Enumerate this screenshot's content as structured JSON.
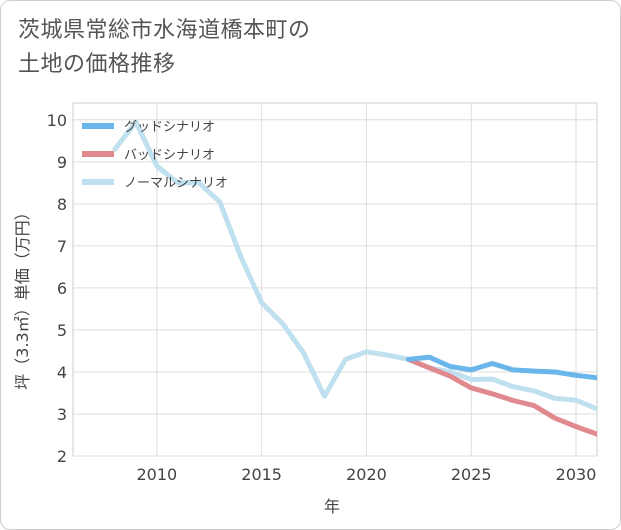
{
  "title_lines": [
    "茨城県常総市水海道橋本町の",
    "土地の価格推移"
  ],
  "chart_data": {
    "type": "line",
    "xlabel": "年",
    "ylabel": "坪（3.3㎡）単価（万円）",
    "xlim": [
      2006,
      2031
    ],
    "ylim": [
      2,
      10.4
    ],
    "xticks": [
      2010,
      2015,
      2020,
      2025,
      2030
    ],
    "yticks": [
      2,
      3,
      4,
      5,
      6,
      7,
      8,
      9,
      10
    ],
    "legend_position": "top-left",
    "grid": true,
    "series": [
      {
        "name": "グッドシナリオ",
        "color": "#6ab6ea",
        "x": [
          2022,
          2023,
          2024,
          2025,
          2026,
          2027,
          2028,
          2029,
          2030,
          2031
        ],
        "y": [
          4.3,
          4.35,
          4.13,
          4.05,
          4.2,
          4.05,
          4.02,
          4.0,
          3.92,
          3.86
        ]
      },
      {
        "name": "バッドシナリオ",
        "color": "#e08a90",
        "x": [
          2022,
          2023,
          2024,
          2025,
          2026,
          2027,
          2028,
          2029,
          2030,
          2031
        ],
        "y": [
          4.3,
          4.1,
          3.9,
          3.62,
          3.48,
          3.32,
          3.2,
          2.9,
          2.7,
          2.52
        ]
      },
      {
        "name": "ノーマルシナリオ",
        "color": "#bfe0ee",
        "x": [
          2008,
          2009,
          2010,
          2011,
          2012,
          2013,
          2014,
          2015,
          2016,
          2017,
          2018,
          2019,
          2020,
          2021,
          2022,
          2023,
          2024,
          2025,
          2026,
          2027,
          2028,
          2029,
          2030,
          2031
        ],
        "y": [
          9.3,
          9.95,
          8.9,
          8.5,
          8.5,
          8.05,
          6.75,
          5.65,
          5.15,
          4.45,
          3.42,
          4.3,
          4.48,
          4.4,
          4.3,
          4.1,
          4.0,
          3.82,
          3.83,
          3.65,
          3.55,
          3.37,
          3.33,
          3.12
        ]
      }
    ]
  }
}
